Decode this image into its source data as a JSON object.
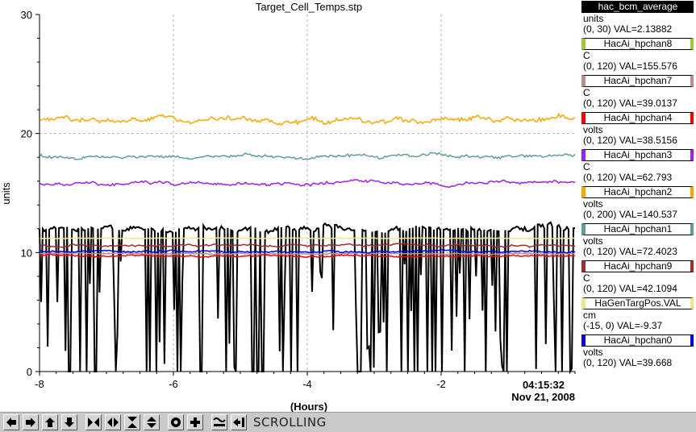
{
  "chart_data": {
    "type": "line",
    "title": "Target_Cell_Temps.stp",
    "xlabel": "(Hours)",
    "ylabel": "units",
    "xlim": [
      -8,
      0
    ],
    "ylim": [
      0,
      30
    ],
    "x_ticks": [
      -8,
      -6,
      -4,
      -2
    ],
    "x_tick_labels": [
      "-8",
      "-6",
      "-4",
      "-2"
    ],
    "y_ticks": [
      0,
      10,
      20,
      30
    ],
    "y_tick_labels": [
      "0",
      "10",
      "20",
      "30"
    ],
    "end_time": "04:15:32",
    "end_date": "Nov 21, 2008",
    "grid": true,
    "legend_position": "right",
    "series": [
      {
        "name": "hac_bcm_average",
        "unit": "units",
        "range": "(0, 30)",
        "val": "VAL=2.13882",
        "color": "#000000",
        "level": 12.0,
        "noise": 0.25,
        "binary": true
      },
      {
        "name": "HacAi_hpchan8",
        "unit": "C",
        "range": "(0, 120)",
        "val": "VAL=155.576",
        "color": "#9acd32",
        "level": null,
        "noise": 0
      },
      {
        "name": "HacAi_hpchan7",
        "unit": "C",
        "range": "(0, 120)",
        "val": "VAL=39.0137",
        "color": "#bc8f8f",
        "level": 9.9,
        "noise": 0.05
      },
      {
        "name": "HacAi_hpchan4",
        "unit": "volts",
        "range": "(0, 120)",
        "val": "VAL=38.5156",
        "color": "#ff0000",
        "level": 9.7,
        "noise": 0.08
      },
      {
        "name": "HacAi_hpchan3",
        "unit": "C",
        "range": "(0, 120)",
        "val": "VAL=62.793",
        "color": "#a020f0",
        "level": 15.8,
        "noise": 0.15
      },
      {
        "name": "HacAi_hpchan2",
        "unit": "volts",
        "range": "(0, 200)",
        "val": "VAL=140.537",
        "color": "#ffa500",
        "level": 21.1,
        "noise": 0.25
      },
      {
        "name": "HacAi_hpchan1",
        "unit": "volts",
        "range": "(0, 120)",
        "val": "VAL=72.4023",
        "color": "#5f9ea0",
        "level": 18.1,
        "noise": 0.15
      },
      {
        "name": "HacAi_hpchan9",
        "unit": "C",
        "range": "(0, 120)",
        "val": "VAL=42.1094",
        "color": "#a52a2a",
        "level": 10.6,
        "noise": 0.1
      },
      {
        "name": "HaGenTargPos.VAL",
        "unit": "cm",
        "range": "(-15, 0)",
        "val": "VAL=-9.37",
        "color": "#f0e68c",
        "level": 11.2,
        "noise": 0.02
      },
      {
        "name": "HacAi_hpchan0",
        "unit": "volts",
        "range": "(0, 120)",
        "val": "VAL=39.668",
        "color": "#0000ff",
        "level": 10.1,
        "noise": 0.08
      }
    ]
  },
  "toolbar": {
    "status": "SCROLLING",
    "buttons": [
      "arrow-left-icon",
      "arrow-right-icon",
      "arrow-up-icon",
      "arrow-down-icon",
      "zoom-in-x-icon",
      "zoom-out-x-icon",
      "zoom-in-y-icon",
      "zoom-out-y-icon",
      "circle-icon",
      "plus-icon",
      "autoscale-icon",
      "hold-icon"
    ]
  }
}
